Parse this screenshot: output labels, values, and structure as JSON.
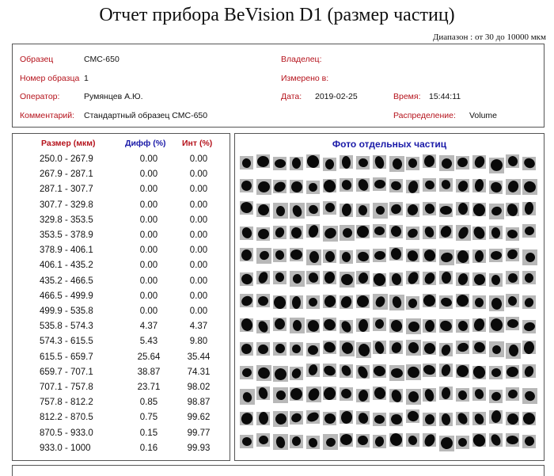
{
  "title": "Отчет прибора BeVision D1 (размер частиц)",
  "range_label": "Диапазон : от 30 до 10000 мкм",
  "info": {
    "sample_label": "Образец",
    "sample_value": "СМС-650",
    "owner_label": "Владелец:",
    "owner_value": "",
    "sample_no_label": "Номер образца",
    "sample_no_value": "1",
    "measured_in_label": "Измерено в:",
    "measured_in_value": "",
    "operator_label": "Оператор:",
    "operator_value": "Румянцев А.Ю.",
    "date_label": "Дата:",
    "date_value": "2019-02-25",
    "time_label": "Время:",
    "time_value": "15:44:11",
    "comment_label": "Комментарий:",
    "comment_value": "Стандартный образец СМС-650",
    "distribution_label": "Распределение:",
    "distribution_value": "Volume"
  },
  "table": {
    "headers": {
      "size": "Размер (мкм)",
      "diff": "Дифф (%)",
      "cum": "Инт (%)"
    },
    "rows": [
      {
        "size": "250.0 - 267.9",
        "diff": "0.00",
        "cum": "0.00"
      },
      {
        "size": "267.9 - 287.1",
        "diff": "0.00",
        "cum": "0.00"
      },
      {
        "size": "287.1 - 307.7",
        "diff": "0.00",
        "cum": "0.00"
      },
      {
        "size": "307.7 - 329.8",
        "diff": "0.00",
        "cum": "0.00"
      },
      {
        "size": "329.8 - 353.5",
        "diff": "0.00",
        "cum": "0.00"
      },
      {
        "size": "353.5 - 378.9",
        "diff": "0.00",
        "cum": "0.00"
      },
      {
        "size": "378.9 - 406.1",
        "diff": "0.00",
        "cum": "0.00"
      },
      {
        "size": "406.1 - 435.2",
        "diff": "0.00",
        "cum": "0.00"
      },
      {
        "size": "435.2 - 466.5",
        "diff": "0.00",
        "cum": "0.00"
      },
      {
        "size": "466.5 - 499.9",
        "diff": "0.00",
        "cum": "0.00"
      },
      {
        "size": "499.9 - 535.8",
        "diff": "0.00",
        "cum": "0.00"
      },
      {
        "size": "535.8 - 574.3",
        "diff": "4.37",
        "cum": "4.37"
      },
      {
        "size": "574.3 - 615.5",
        "diff": "5.43",
        "cum": "9.80"
      },
      {
        "size": "615.5 - 659.7",
        "diff": "25.64",
        "cum": "35.44"
      },
      {
        "size": "659.7 - 707.1",
        "diff": "38.87",
        "cum": "74.31"
      },
      {
        "size": "707.1 - 757.8",
        "diff": "23.71",
        "cum": "98.02"
      },
      {
        "size": "757.8 - 812.2",
        "diff": "0.85",
        "cum": "98.87"
      },
      {
        "size": "812.2 - 870.5",
        "diff": "0.75",
        "cum": "99.62"
      },
      {
        "size": "870.5 - 933.0",
        "diff": "0.15",
        "cum": "99.77"
      },
      {
        "size": "933.0 - 1000",
        "diff": "0.16",
        "cum": "99.93"
      }
    ]
  },
  "photos": {
    "title": "Фото отдельных частиц",
    "rows": 13,
    "cols": 18
  },
  "colors": {
    "label_red": "#b5121b",
    "header_blue": "#1a1aa8",
    "particle_black": "#0a0a0a",
    "cell_gray": "#b8b8b8"
  }
}
